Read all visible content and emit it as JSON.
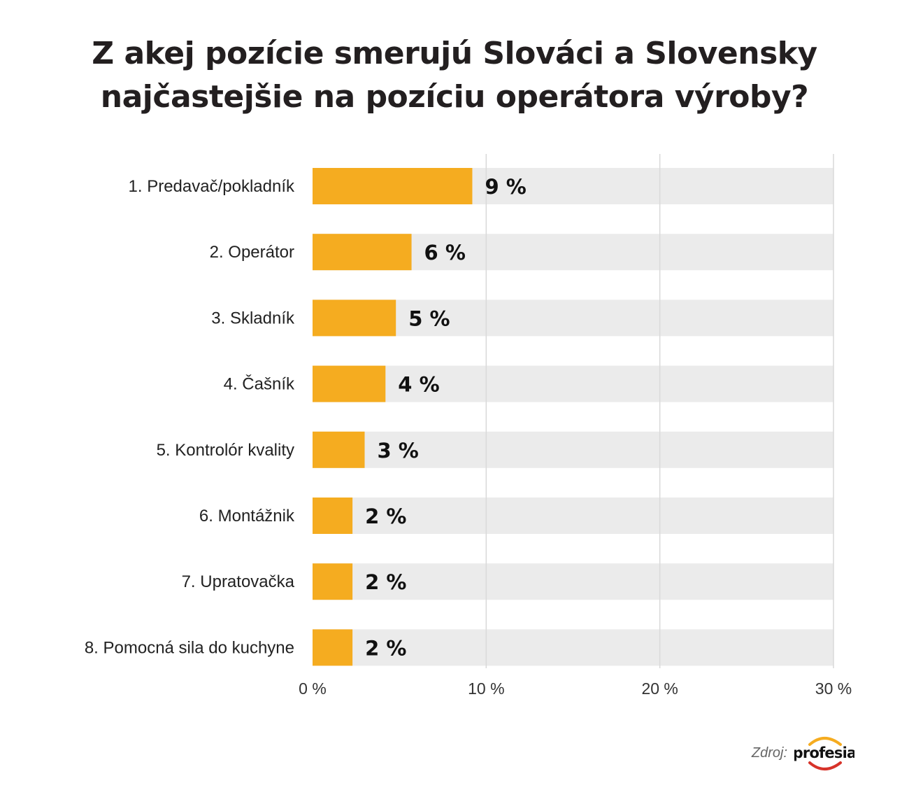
{
  "title": {
    "line1": "Z akej pozície smerujú Slováci a Slovensky",
    "line2": "najčastejšie na pozíciu operátora výroby?"
  },
  "source": {
    "label": "Zdroj:",
    "logo_text": "profesia"
  },
  "colors": {
    "bar": "#F5AC20",
    "track": "#EBEBEB",
    "grid": "#D9D9D9",
    "logo_ring_top": "#F5AC20",
    "logo_ring_bottom": "#D7332A"
  },
  "chart_data": {
    "type": "bar",
    "orientation": "horizontal",
    "categories": [
      "1. Predavač/pokladník",
      "2. Operátor",
      "3. Skladník",
      "4. Čašník",
      "5. Kontrolór kvality",
      "6. Montážnik",
      "7. Upratovačka",
      "8. Pomocná sila do kuchyne"
    ],
    "values": [
      9.2,
      5.7,
      4.8,
      4.2,
      3.0,
      2.3,
      2.3,
      2.3
    ],
    "value_labels": [
      "9 %",
      "6 %",
      "5 %",
      "4 %",
      "3 %",
      "2 %",
      "2 %",
      "2 %"
    ],
    "xlim": [
      0,
      30
    ],
    "ticks": [
      0,
      10,
      20,
      30
    ],
    "tick_labels": [
      "0 %",
      "10 %",
      "20 %",
      "30 %"
    ],
    "grid": true
  }
}
